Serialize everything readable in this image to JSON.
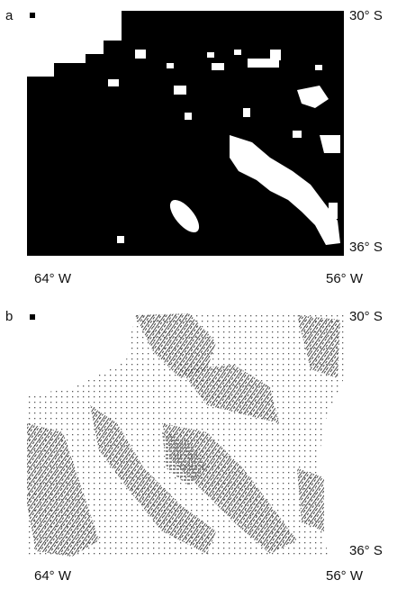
{
  "panel_a": {
    "label": "a",
    "lat_top": "30° S",
    "lat_bottom": "36° S",
    "lon_left": "64° W",
    "lon_right": "56° W"
  },
  "panel_b": {
    "label": "b",
    "lat_top": "30° S",
    "lat_bottom": "36° S",
    "lon_left": "64° W",
    "lon_right": "56° W"
  }
}
